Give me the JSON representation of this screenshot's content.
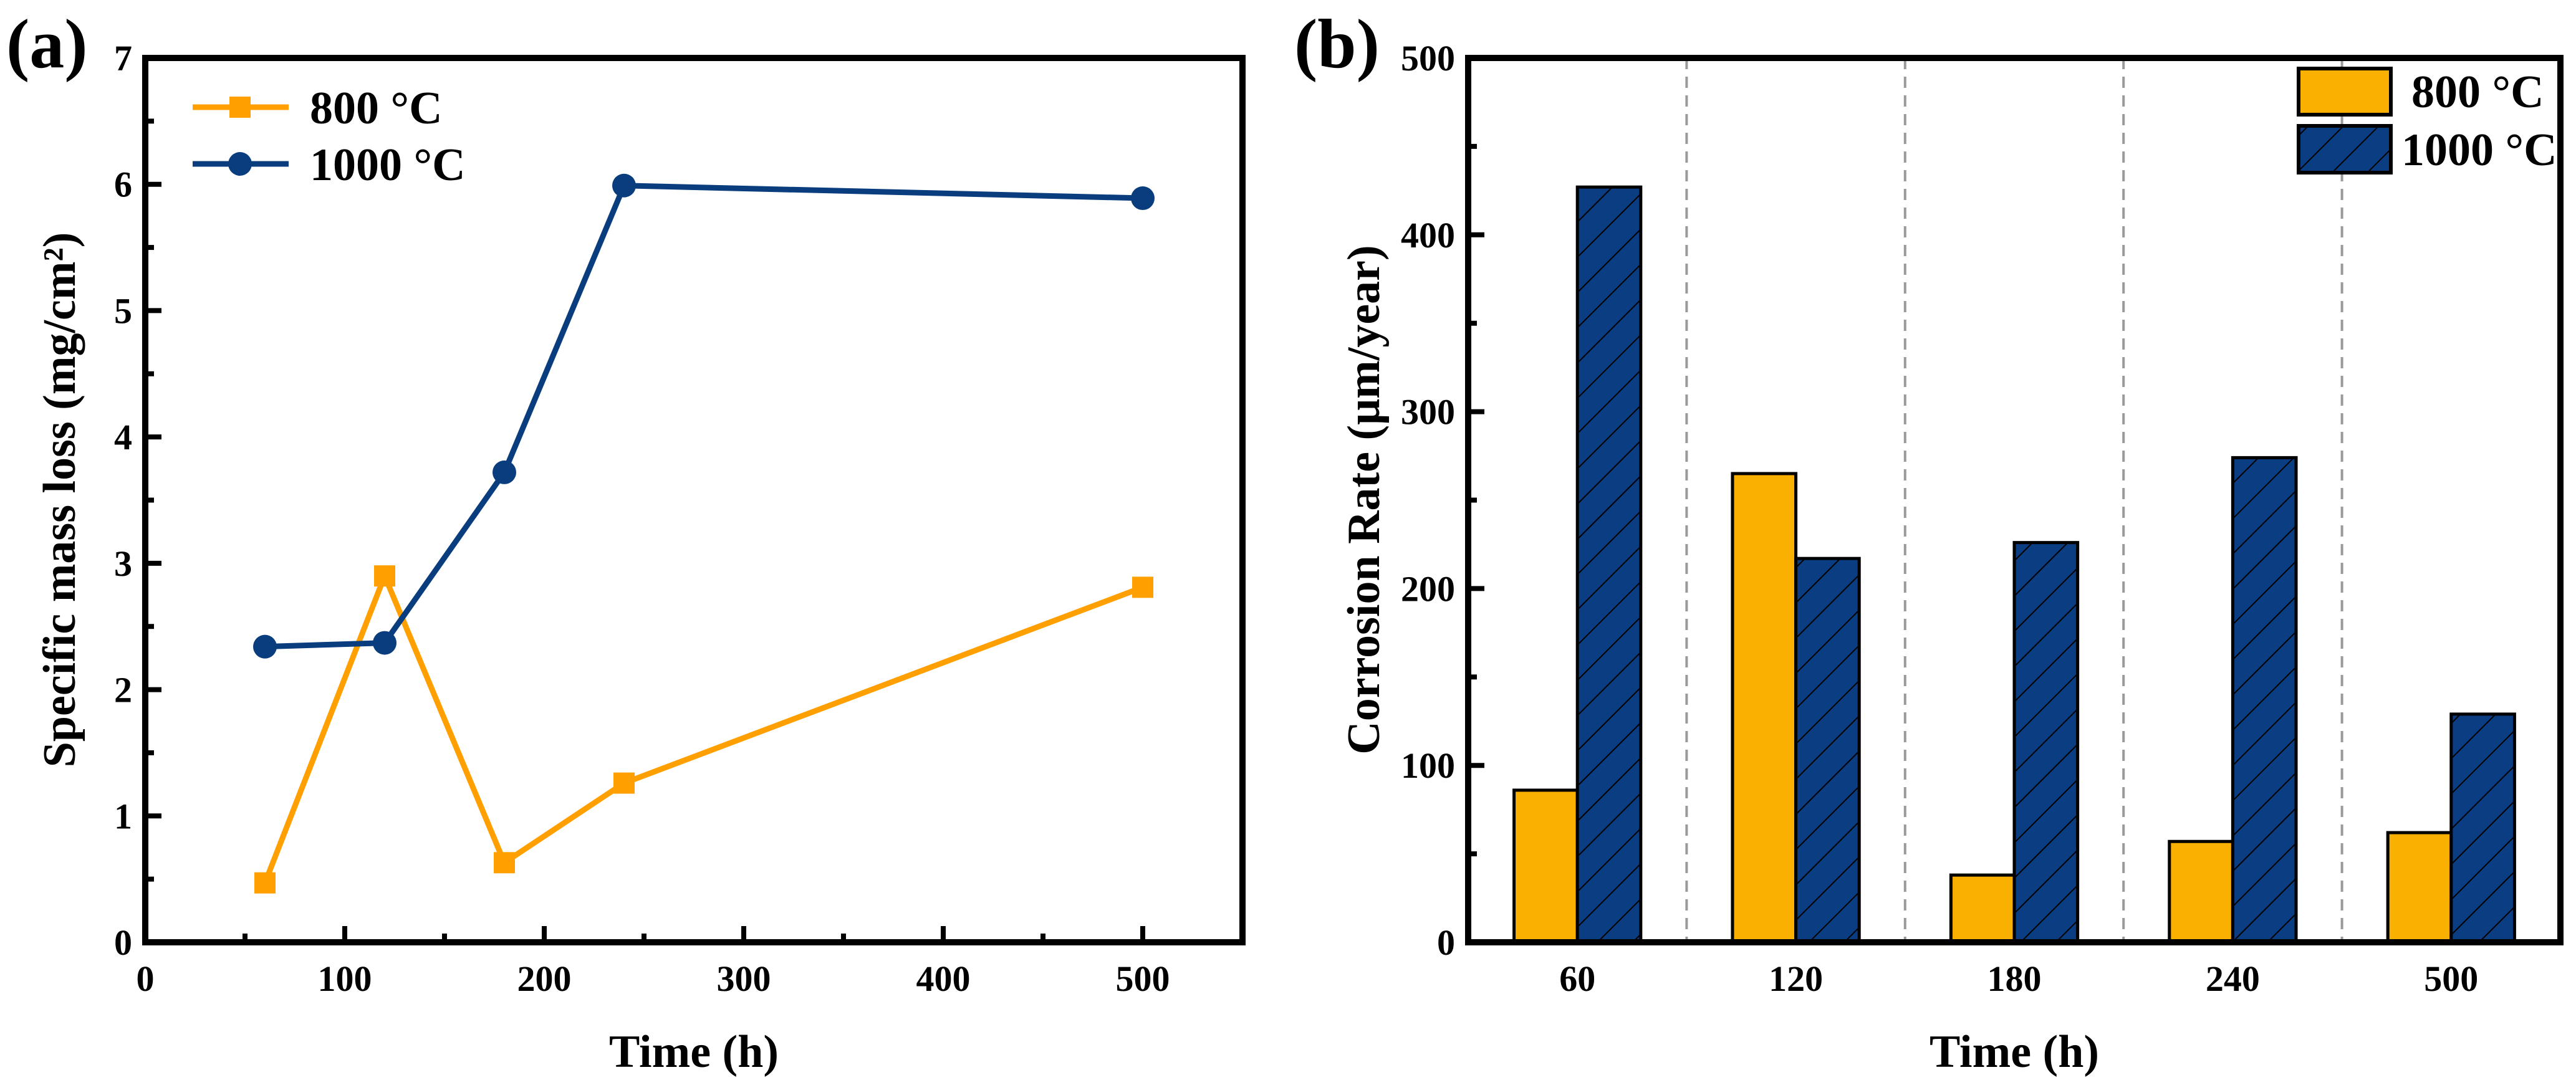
{
  "colors": {
    "orange_line": "#FFA000",
    "blue_line": "#0A3D7E",
    "orange_bar": "#F9B000",
    "blue_bar": "#0B3D82",
    "separator": "#9a9a9a"
  },
  "chart_data": [
    {
      "panel_label": "(a)",
      "type": "line",
      "xlabel": "Time (h)",
      "ylabel": "Specific mass loss (mg/cm²)",
      "xlim": [
        0,
        550
      ],
      "ylim": [
        0,
        7
      ],
      "xticks": [
        "0",
        "100",
        "200",
        "300",
        "400",
        "500"
      ],
      "yticks": [
        "0",
        "1",
        "2",
        "3",
        "4",
        "5",
        "6",
        "7"
      ],
      "legend_position": "top-left",
      "x": [
        60,
        120,
        180,
        240,
        500
      ],
      "series": [
        {
          "name": "800 °C",
          "marker": "square",
          "values": [
            0.47,
            2.9,
            0.63,
            1.26,
            2.81
          ]
        },
        {
          "name": "1000 °C",
          "marker": "circle",
          "values": [
            2.34,
            2.37,
            3.72,
            5.99,
            5.89
          ]
        }
      ]
    },
    {
      "panel_label": "(b)",
      "type": "bar",
      "xlabel": "Time (h)",
      "ylabel": "Corrosion Rate (μm/year)",
      "ylim": [
        0,
        500
      ],
      "yticks": [
        "0",
        "100",
        "200",
        "300",
        "400",
        "500"
      ],
      "categories": [
        "60",
        "120",
        "180",
        "240",
        "500"
      ],
      "legend_position": "top-right",
      "series": [
        {
          "name": "800 °C",
          "pattern": "solid",
          "values": [
            86,
            265,
            38,
            57,
            62
          ]
        },
        {
          "name": "1000 °C",
          "pattern": "hatched",
          "values": [
            427,
            217,
            226,
            274,
            129
          ]
        }
      ]
    }
  ]
}
